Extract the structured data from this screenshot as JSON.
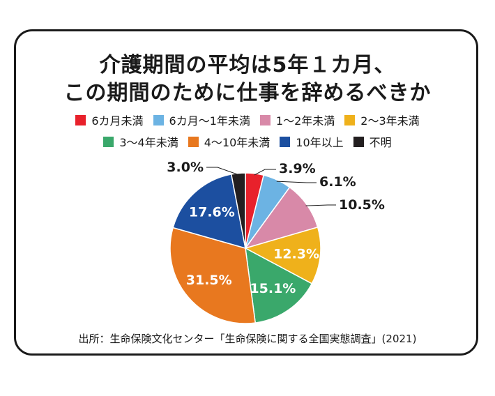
{
  "title": {
    "line1": "介護期間の平均は5年１カ月、",
    "line2": "この期間のために仕事を辞めるべきか"
  },
  "source": "出所：生命保険文化センター「生命保険に関する全国実態調査」(2021)",
  "chart_data": {
    "type": "pie",
    "title": "介護期間の平均は5年１カ月、この期間のために仕事を辞めるべきか",
    "unit": "%",
    "slices": [
      {
        "label": "6カ月未満",
        "value": 3.9,
        "value_label": "3.9%",
        "color": "#e8212b"
      },
      {
        "label": "6カ月〜1年未満",
        "value": 6.1,
        "value_label": "6.1%",
        "color": "#6cb3e3"
      },
      {
        "label": "1〜2年未満",
        "value": 10.5,
        "value_label": "10.5%",
        "color": "#d889a8"
      },
      {
        "label": "2〜3年未満",
        "value": 12.3,
        "value_label": "12.3%",
        "color": "#efb11b"
      },
      {
        "label": "3〜4年未満",
        "value": 15.1,
        "value_label": "15.1%",
        "color": "#3aa86b"
      },
      {
        "label": "4〜10年未満",
        "value": 31.5,
        "value_label": "31.5%",
        "color": "#e8781f"
      },
      {
        "label": "10年以上",
        "value": 17.6,
        "value_label": "17.6%",
        "color": "#1c4fa0"
      },
      {
        "label": "不明",
        "value": 3.0,
        "value_label": "3.0%",
        "color": "#231f20"
      }
    ],
    "legend_rows": [
      [
        0,
        1,
        2,
        3
      ],
      [
        4,
        5,
        6,
        7
      ]
    ]
  }
}
